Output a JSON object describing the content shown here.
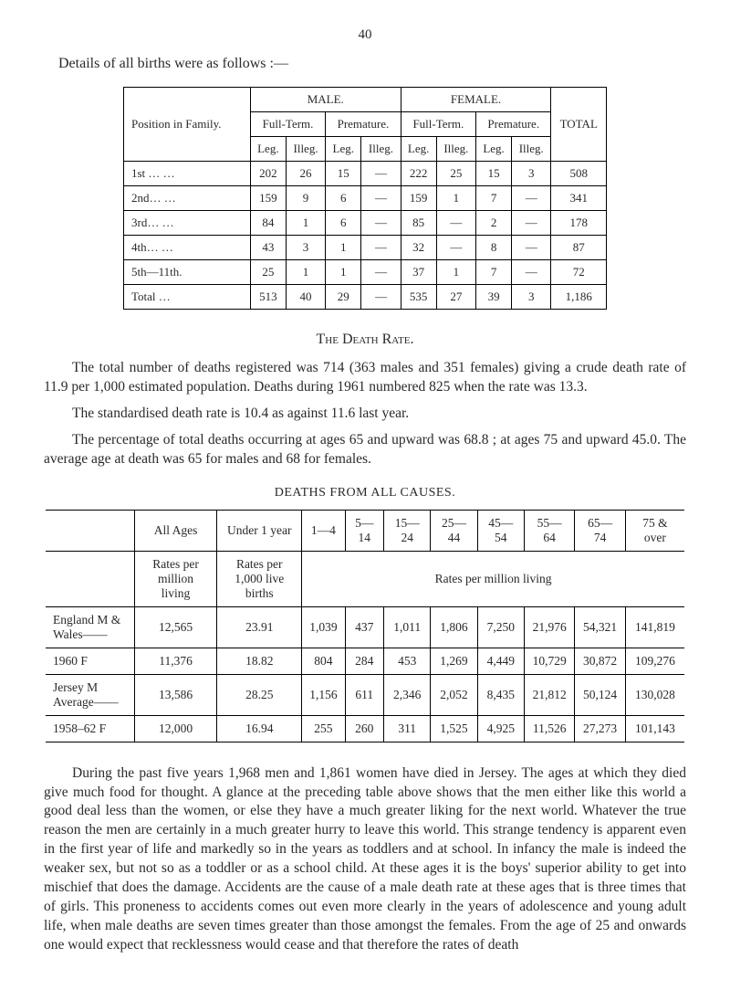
{
  "page": {
    "number": "40",
    "intro": "Details of all births were as follows :—"
  },
  "births_table": {
    "headers": {
      "position": "Position in\nFamily.",
      "male": "MALE.",
      "female": "FEMALE.",
      "full_term": "Full-Term.",
      "premature": "Premature.",
      "leg": "Leg.",
      "illeg": "Illeg.",
      "total": "TOTAL"
    },
    "rows": [
      {
        "label": "1st … …",
        "m_ft_leg": "202",
        "m_ft_ill": "26",
        "m_pr_leg": "15",
        "m_pr_ill": "—",
        "f_ft_leg": "222",
        "f_ft_ill": "25",
        "f_pr_leg": "15",
        "f_pr_ill": "3",
        "total": "508"
      },
      {
        "label": "2nd… …",
        "m_ft_leg": "159",
        "m_ft_ill": "9",
        "m_pr_leg": "6",
        "m_pr_ill": "—",
        "f_ft_leg": "159",
        "f_ft_ill": "1",
        "f_pr_leg": "7",
        "f_pr_ill": "—",
        "total": "341"
      },
      {
        "label": "3rd… …",
        "m_ft_leg": "84",
        "m_ft_ill": "1",
        "m_pr_leg": "6",
        "m_pr_ill": "—",
        "f_ft_leg": "85",
        "f_ft_ill": "—",
        "f_pr_leg": "2",
        "f_pr_ill": "—",
        "total": "178"
      },
      {
        "label": "4th… …",
        "m_ft_leg": "43",
        "m_ft_ill": "3",
        "m_pr_leg": "1",
        "m_pr_ill": "—",
        "f_ft_leg": "32",
        "f_ft_ill": "—",
        "f_pr_leg": "8",
        "f_pr_ill": "—",
        "total": "87"
      },
      {
        "label": "5th—11th.",
        "m_ft_leg": "25",
        "m_ft_ill": "1",
        "m_pr_leg": "1",
        "m_pr_ill": "—",
        "f_ft_leg": "37",
        "f_ft_ill": "1",
        "f_pr_leg": "7",
        "f_pr_ill": "—",
        "total": "72"
      },
      {
        "label": "Total …",
        "m_ft_leg": "513",
        "m_ft_ill": "40",
        "m_pr_leg": "29",
        "m_pr_ill": "—",
        "f_ft_leg": "535",
        "f_ft_ill": "27",
        "f_pr_leg": "39",
        "f_pr_ill": "3",
        "total": "1,186"
      }
    ]
  },
  "death_rate": {
    "heading": "The Death Rate.",
    "p1": "The total number of deaths registered was 714 (363 males and 351 females) giving a crude death rate of 11.9 per 1,000 estimated population. Deaths during 1961 numbered 825 when the rate was 13.3.",
    "p2": "The standardised death rate is 10.4 as against 11.6 last year.",
    "p3": "The percentage of total deaths occurring at ages 65 and upward was 68.8 ; at ages 75 and upward 45.0. The average age at death was 65 for males and 68 for females."
  },
  "deaths_table": {
    "caption": "DEATHS FROM ALL CAUSES.",
    "headers": {
      "all_ages": "All\nAges",
      "under1": "Under\n1 year",
      "c1": "1—4",
      "c2": "5—14",
      "c3": "15—24",
      "c4": "25—44",
      "c5": "45—54",
      "c6": "55—64",
      "c7": "65—74",
      "c8": "75 &\nover",
      "rates_per_mil": "Rates per\nmillion\nliving",
      "rates_per_births": "Rates per\n1,000 live\nbirths",
      "rates_span": "Rates per million living"
    },
    "rows": [
      {
        "label": "England M\n& Wales——",
        "all": "12,565",
        "u1": "23.91",
        "c1": "1,039",
        "c2": "437",
        "c3": "1,011",
        "c4": "1,806",
        "c5": "7,250",
        "c6": "21,976",
        "c7": "54,321",
        "c8": "141,819"
      },
      {
        "label": "1960     F",
        "all": "11,376",
        "u1": "18.82",
        "c1": "804",
        "c2": "284",
        "c3": "453",
        "c4": "1,269",
        "c5": "4,449",
        "c6": "10,729",
        "c7": "30,872",
        "c8": "109,276"
      },
      {
        "label": "Jersey   M\nAverage——",
        "all": "13,586",
        "u1": "28.25",
        "c1": "1,156",
        "c2": "611",
        "c3": "2,346",
        "c4": "2,052",
        "c5": "8,435",
        "c6": "21,812",
        "c7": "50,124",
        "c8": "130,028"
      },
      {
        "label": "1958–62  F",
        "all": "12,000",
        "u1": "16.94",
        "c1": "255",
        "c2": "260",
        "c3": "311",
        "c4": "1,525",
        "c5": "4,925",
        "c6": "11,526",
        "c7": "27,273",
        "c8": "101,143"
      }
    ]
  },
  "closing": {
    "p": "During the past five years 1,968 men and 1,861 women have died in Jersey. The ages at which they died give much food for thought. A glance at the preceding table above shows that the men either like this world a good deal less than the women, or else they have a much greater liking for the next world. Whatever the true reason the men are certainly in a much greater hurry to leave this world. This strange tendency is apparent even in the first year of life and markedly so in the years as toddlers and at school. In infancy the male is indeed the weaker sex, but not so as a toddler or as a school child. At these ages it is the boys' superior ability to get into mischief that does the damage. Accidents are the cause of a male death rate at these ages that is three times that of girls. This proneness to accidents comes out even more clearly in the years of adolescence and young adult life, when male deaths are seven times greater than those amongst the females. From the age of 25 and onwards one would expect that recklessness would cease and that therefore the rates of death"
  }
}
